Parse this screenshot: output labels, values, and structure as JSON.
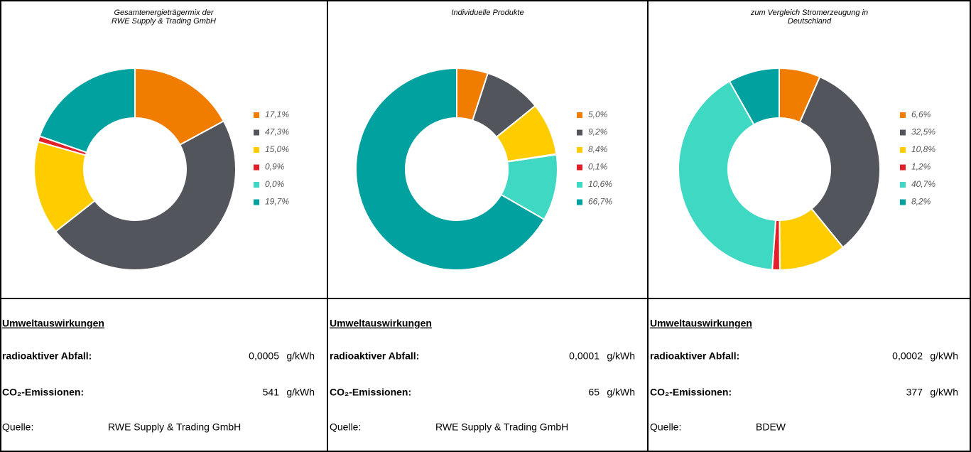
{
  "chart_data": [
    {
      "type": "donut",
      "title": [
        "Gesamtenergieträgermix der",
        "RWE Supply & Trading GmbH"
      ],
      "values": [
        17.1,
        47.3,
        15.0,
        0.9,
        0.0,
        19.7
      ],
      "value_labels": [
        "17,1%",
        "47,3%",
        "15,0%",
        "0,9%",
        "0,0%",
        "19,7%"
      ],
      "colors": [
        "#f07d00",
        "#52555b",
        "#ffcc00",
        "#e3202a",
        "#3ed8c3",
        "#00a19f"
      ]
    },
    {
      "type": "donut",
      "title": [
        "Individuelle Produkte"
      ],
      "values": [
        5.0,
        9.2,
        8.4,
        0.1,
        10.6,
        66.7
      ],
      "value_labels": [
        "5,0%",
        "9,2%",
        "8,4%",
        "0,1%",
        "10,6%",
        "66,7%"
      ],
      "colors": [
        "#f07d00",
        "#52555b",
        "#ffcc00",
        "#e3202a",
        "#3ed8c3",
        "#00a19f"
      ]
    },
    {
      "type": "donut",
      "title": [
        "zum Vergleich Stromerzeugung in",
        "Deutschland"
      ],
      "values": [
        6.6,
        32.5,
        10.8,
        1.2,
        40.7,
        8.2
      ],
      "value_labels": [
        "6,6%",
        "32,5%",
        "10,8%",
        "1,2%",
        "40,7%",
        "8,2%"
      ],
      "colors": [
        "#f07d00",
        "#52555b",
        "#ffcc00",
        "#e3202a",
        "#3ed8c3",
        "#00a19f"
      ]
    }
  ],
  "tables": [
    {
      "heading": "Umweltauswirkungen",
      "rows": [
        {
          "label": "radioaktiver Abfall:",
          "value": "0,0005",
          "unit": "g/kWh"
        },
        {
          "label": "CO₂-Emissionen:",
          "value": "541",
          "unit": "g/kWh"
        }
      ],
      "source_label": "Quelle:",
      "source": "RWE Supply & Trading GmbH"
    },
    {
      "heading": "Umweltauswirkungen",
      "rows": [
        {
          "label": "radioaktiver Abfall:",
          "value": "0,0001",
          "unit": "g/kWh"
        },
        {
          "label": "CO₂-Emissionen:",
          "value": "65",
          "unit": "g/kWh"
        }
      ],
      "source_label": "Quelle:",
      "source": "RWE Supply & Trading GmbH"
    },
    {
      "heading": "Umweltauswirkungen",
      "rows": [
        {
          "label": "radioaktiver Abfall:",
          "value": "0,0002",
          "unit": "g/kWh"
        },
        {
          "label": "CO₂-Emissionen:",
          "value": "377",
          "unit": "g/kWh"
        }
      ],
      "source_label": "Quelle:",
      "source": "BDEW"
    }
  ]
}
